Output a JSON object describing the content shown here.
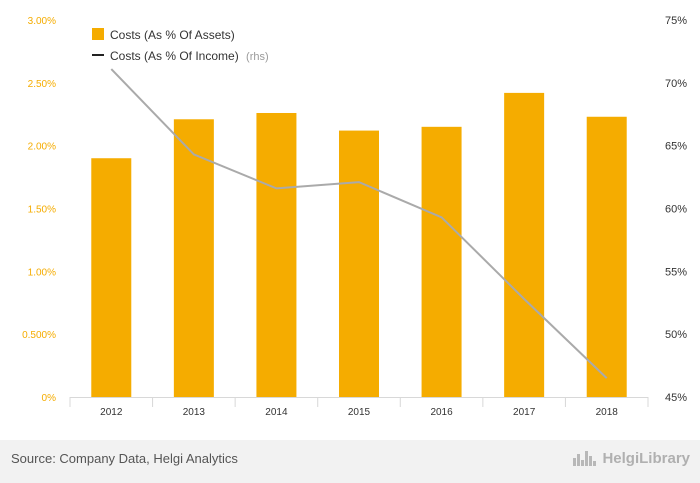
{
  "chart_data": {
    "type": "bar",
    "categories": [
      "2012",
      "2013",
      "2014",
      "2015",
      "2016",
      "2017",
      "2018"
    ],
    "series": [
      {
        "name": "Costs (As % Of Assets)",
        "type": "bar",
        "axis": "left",
        "color": "#f5ac00",
        "values": [
          1.9,
          2.21,
          2.26,
          2.12,
          2.15,
          2.42,
          2.23
        ]
      },
      {
        "name": "Costs (As % Of Income)",
        "axis_note": "(rhs)",
        "type": "line",
        "axis": "right",
        "color": "#aaaaaa",
        "values": [
          71.1,
          64.3,
          61.6,
          62.1,
          59.3,
          52.8,
          46.5
        ]
      }
    ],
    "y_left": {
      "ylim": [
        0,
        3.0
      ],
      "ticks": [
        0,
        0.5,
        1.0,
        1.5,
        2.0,
        2.5,
        3.0
      ],
      "tick_labels": [
        "0%",
        "0.500%",
        "1.00%",
        "1.50%",
        "2.00%",
        "2.50%",
        "3.00%"
      ]
    },
    "y_right": {
      "ylim": [
        45,
        75
      ],
      "ticks": [
        45,
        50,
        55,
        60,
        65,
        70,
        75
      ],
      "tick_labels": [
        "45%",
        "50%",
        "55%",
        "60%",
        "65%",
        "70%",
        "75%"
      ]
    },
    "legend_position": "top-left",
    "grid": false,
    "title": "",
    "xlabel": "",
    "ylabel": ""
  },
  "footer": {
    "source": "Source: Company Data, Helgi Analytics",
    "brand_name": "HelgiLibrary",
    "brand_icon": "bar-chart-icon"
  }
}
